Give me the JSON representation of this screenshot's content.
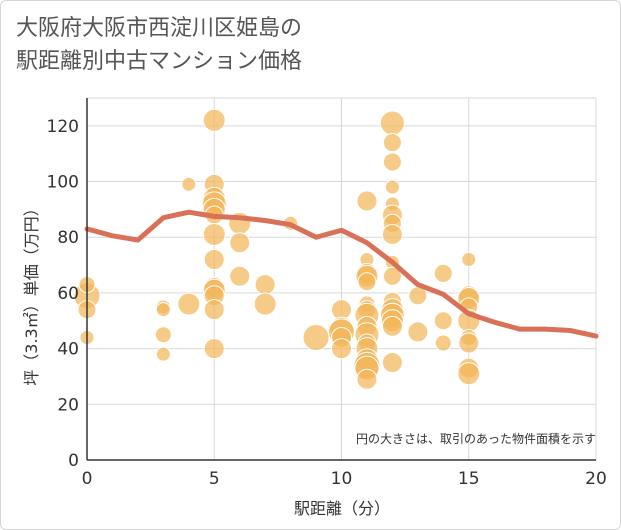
{
  "chart_data": {
    "type": "scatter",
    "title": "大阪府大阪市西淀川区姫島の\n駅距離別中古マンション価格",
    "xlabel": "駅距離（分）",
    "ylabel": "坪（3.3㎡）単価（万円）",
    "note": "円の大きさは、取引のあった物件面積を示す",
    "xlim": [
      0,
      20
    ],
    "ylim": [
      0,
      130
    ],
    "x_ticks": [
      "0",
      "5",
      "10",
      "15",
      "20"
    ],
    "y_ticks": [
      "0",
      "20",
      "40",
      "60",
      "80",
      "100",
      "120"
    ],
    "grid": true,
    "colors": {
      "bubble": "#f3b559",
      "line": "#d97158",
      "grid": "#d9d9d9",
      "axis": "#333333"
    },
    "points": [
      {
        "x": 0,
        "y": 59,
        "s": 13
      },
      {
        "x": 0,
        "y": 63,
        "s": 8
      },
      {
        "x": 0,
        "y": 54,
        "s": 9
      },
      {
        "x": 0,
        "y": 44,
        "s": 7
      },
      {
        "x": 3,
        "y": 55,
        "s": 7
      },
      {
        "x": 3,
        "y": 54,
        "s": 7
      },
      {
        "x": 3,
        "y": 45,
        "s": 8
      },
      {
        "x": 3,
        "y": 38,
        "s": 7
      },
      {
        "x": 4,
        "y": 99,
        "s": 7
      },
      {
        "x": 4,
        "y": 56,
        "s": 11
      },
      {
        "x": 5,
        "y": 122,
        "s": 11
      },
      {
        "x": 5,
        "y": 99,
        "s": 10
      },
      {
        "x": 5,
        "y": 94,
        "s": 11
      },
      {
        "x": 5,
        "y": 92,
        "s": 12
      },
      {
        "x": 5,
        "y": 90,
        "s": 11
      },
      {
        "x": 5,
        "y": 88,
        "s": 9
      },
      {
        "x": 5,
        "y": 81,
        "s": 11
      },
      {
        "x": 5,
        "y": 72,
        "s": 10
      },
      {
        "x": 5,
        "y": 62,
        "s": 10
      },
      {
        "x": 5,
        "y": 61,
        "s": 11
      },
      {
        "x": 5,
        "y": 59,
        "s": 10
      },
      {
        "x": 5,
        "y": 54,
        "s": 10
      },
      {
        "x": 5,
        "y": 40,
        "s": 10
      },
      {
        "x": 6,
        "y": 85,
        "s": 11
      },
      {
        "x": 6,
        "y": 78,
        "s": 10
      },
      {
        "x": 6,
        "y": 66,
        "s": 10
      },
      {
        "x": 7,
        "y": 63,
        "s": 10
      },
      {
        "x": 7,
        "y": 56,
        "s": 11
      },
      {
        "x": 8,
        "y": 85,
        "s": 7
      },
      {
        "x": 9,
        "y": 44,
        "s": 13
      },
      {
        "x": 10,
        "y": 54,
        "s": 10
      },
      {
        "x": 10,
        "y": 47,
        "s": 12
      },
      {
        "x": 10,
        "y": 46,
        "s": 13
      },
      {
        "x": 10,
        "y": 44,
        "s": 10
      },
      {
        "x": 10,
        "y": 40,
        "s": 10
      },
      {
        "x": 11,
        "y": 93,
        "s": 10
      },
      {
        "x": 11,
        "y": 72,
        "s": 7
      },
      {
        "x": 11,
        "y": 67,
        "s": 10
      },
      {
        "x": 11,
        "y": 66,
        "s": 11
      },
      {
        "x": 11,
        "y": 64,
        "s": 9
      },
      {
        "x": 11,
        "y": 56,
        "s": 8
      },
      {
        "x": 11,
        "y": 54,
        "s": 9
      },
      {
        "x": 11,
        "y": 52,
        "s": 12
      },
      {
        "x": 11,
        "y": 48,
        "s": 10
      },
      {
        "x": 11,
        "y": 45,
        "s": 12
      },
      {
        "x": 11,
        "y": 42,
        "s": 9
      },
      {
        "x": 11,
        "y": 40,
        "s": 11
      },
      {
        "x": 11,
        "y": 36,
        "s": 11
      },
      {
        "x": 11,
        "y": 34,
        "s": 13
      },
      {
        "x": 11,
        "y": 33,
        "s": 12
      },
      {
        "x": 11,
        "y": 29,
        "s": 10
      },
      {
        "x": 12,
        "y": 121,
        "s": 12
      },
      {
        "x": 12,
        "y": 114,
        "s": 9
      },
      {
        "x": 12,
        "y": 107,
        "s": 9
      },
      {
        "x": 12,
        "y": 98,
        "s": 7
      },
      {
        "x": 12,
        "y": 92,
        "s": 7
      },
      {
        "x": 12,
        "y": 88,
        "s": 10
      },
      {
        "x": 12,
        "y": 85,
        "s": 9
      },
      {
        "x": 12,
        "y": 81,
        "s": 10
      },
      {
        "x": 12,
        "y": 71,
        "s": 7
      },
      {
        "x": 12,
        "y": 66,
        "s": 9
      },
      {
        "x": 12,
        "y": 57,
        "s": 9
      },
      {
        "x": 12,
        "y": 54,
        "s": 11
      },
      {
        "x": 12,
        "y": 52,
        "s": 12
      },
      {
        "x": 12,
        "y": 50,
        "s": 11
      },
      {
        "x": 12,
        "y": 48,
        "s": 10
      },
      {
        "x": 12,
        "y": 35,
        "s": 10
      },
      {
        "x": 13,
        "y": 59,
        "s": 9
      },
      {
        "x": 13,
        "y": 46,
        "s": 10
      },
      {
        "x": 14,
        "y": 67,
        "s": 9
      },
      {
        "x": 14,
        "y": 50,
        "s": 9
      },
      {
        "x": 14,
        "y": 42,
        "s": 8
      },
      {
        "x": 15,
        "y": 72,
        "s": 7
      },
      {
        "x": 15,
        "y": 59,
        "s": 10
      },
      {
        "x": 15,
        "y": 58,
        "s": 11
      },
      {
        "x": 15,
        "y": 55,
        "s": 9
      },
      {
        "x": 15,
        "y": 50,
        "s": 11
      },
      {
        "x": 15,
        "y": 44,
        "s": 8
      },
      {
        "x": 15,
        "y": 42,
        "s": 10
      },
      {
        "x": 15,
        "y": 33,
        "s": 10
      },
      {
        "x": 15,
        "y": 31,
        "s": 11
      }
    ],
    "series": [
      {
        "type": "line",
        "x": [
          0,
          1,
          2,
          3,
          4,
          5,
          6,
          7,
          8,
          9,
          10,
          11,
          12,
          13,
          14,
          15,
          16,
          17,
          18,
          19,
          20
        ],
        "y": [
          83,
          80.5,
          79,
          87,
          89,
          87.5,
          87,
          86,
          84.5,
          80,
          82.5,
          78,
          71,
          63,
          59.5,
          52.5,
          49.5,
          47,
          47,
          46.5,
          44.5
        ]
      }
    ]
  }
}
